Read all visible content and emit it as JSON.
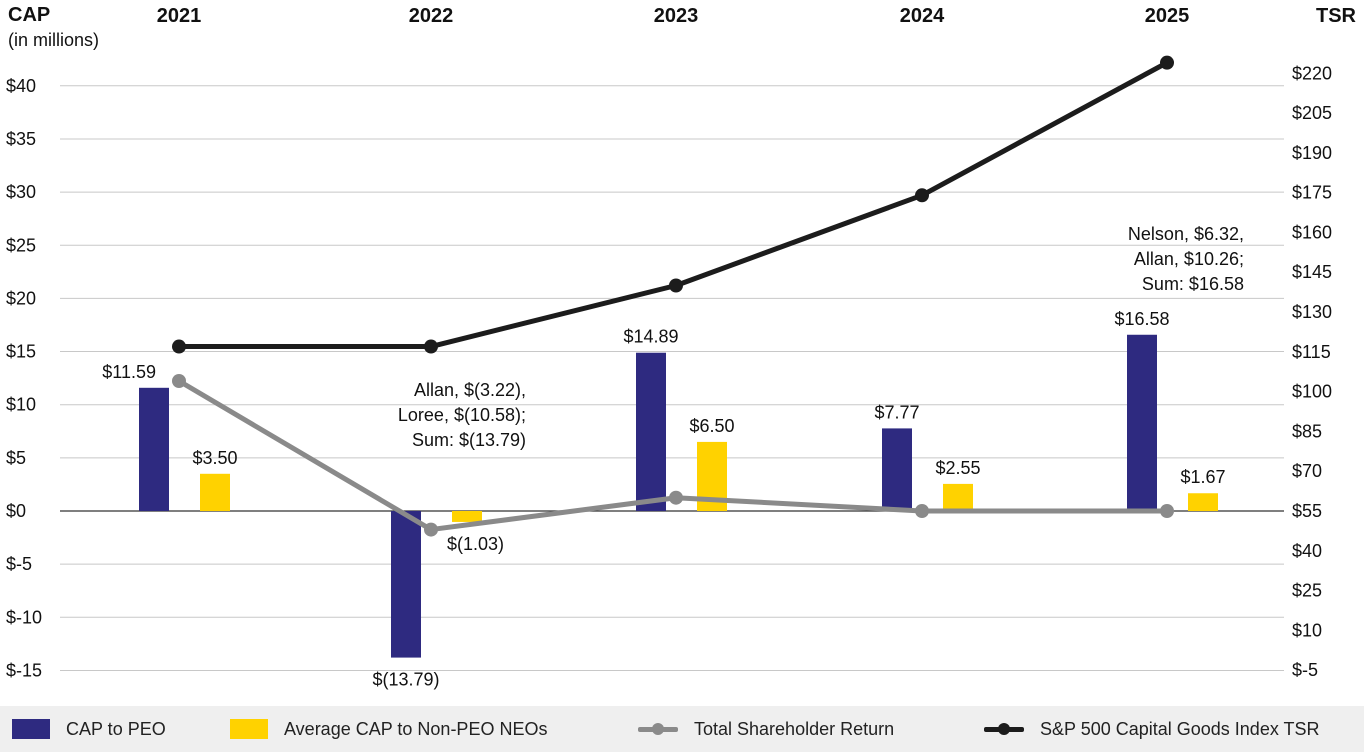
{
  "chart_data": {
    "type": "bar+line",
    "left_axis": {
      "title": "CAP",
      "subtitle": "(in millions)",
      "range": [
        -15,
        40
      ],
      "step": 5,
      "tick_labels": [
        "$40",
        "$35",
        "$30",
        "$25",
        "$20",
        "$15",
        "$10",
        "$5",
        "$0",
        "$-5",
        "$-10",
        "$-15"
      ]
    },
    "right_axis": {
      "title": "TSR",
      "range": [
        -5,
        220
      ],
      "step": 15,
      "tick_labels": [
        "$220",
        "$205",
        "$190",
        "$175",
        "$160",
        "$145",
        "$130",
        "$115",
        "$100",
        "$85",
        "$70",
        "$55",
        "$40",
        "$25",
        "$10",
        "$-5"
      ]
    },
    "categories": [
      "2021",
      "2022",
      "2023",
      "2024",
      "2025"
    ],
    "series": [
      {
        "name": "CAP to PEO",
        "kind": "bar",
        "axis": "left",
        "color": "#2e2a80",
        "values": [
          11.59,
          -13.79,
          14.89,
          7.77,
          16.58
        ],
        "labels": [
          "$11.59",
          "$(13.79)",
          "$14.89",
          "$7.77",
          "$16.58"
        ]
      },
      {
        "name": "Average CAP to Non-PEO NEOs",
        "kind": "bar",
        "axis": "left",
        "color": "#ffd200",
        "values": [
          3.5,
          -1.03,
          6.5,
          2.55,
          1.67
        ],
        "labels": [
          "$3.50",
          "$(1.03)",
          "$6.50",
          "$2.55",
          "$1.67"
        ]
      },
      {
        "name": "Total Shareholder Return",
        "kind": "line",
        "axis": "right",
        "color": "#8a8a8a",
        "values": [
          104,
          48,
          60,
          55,
          55
        ]
      },
      {
        "name": "S&P 500 Capital Goods Index TSR",
        "kind": "line",
        "axis": "right",
        "color": "#1c1c1c",
        "values": [
          117,
          117,
          140,
          174,
          224
        ]
      }
    ],
    "annotations": [
      {
        "category": "2022",
        "lines": [
          "Allan, $(3.22),",
          "Loree, $(10.58);",
          "Sum: $(13.79)"
        ]
      },
      {
        "category": "2025",
        "lines": [
          "Nelson, $6.32,",
          "Allan, $10.26;",
          "Sum: $16.58"
        ]
      }
    ]
  },
  "legend": {
    "peo_label": "CAP to PEO",
    "neo_label": "Average CAP to Non-PEO NEOs",
    "tsr_label": "Total Shareholder Return",
    "index_label": "S&P 500 Capital Goods Index TSR"
  }
}
